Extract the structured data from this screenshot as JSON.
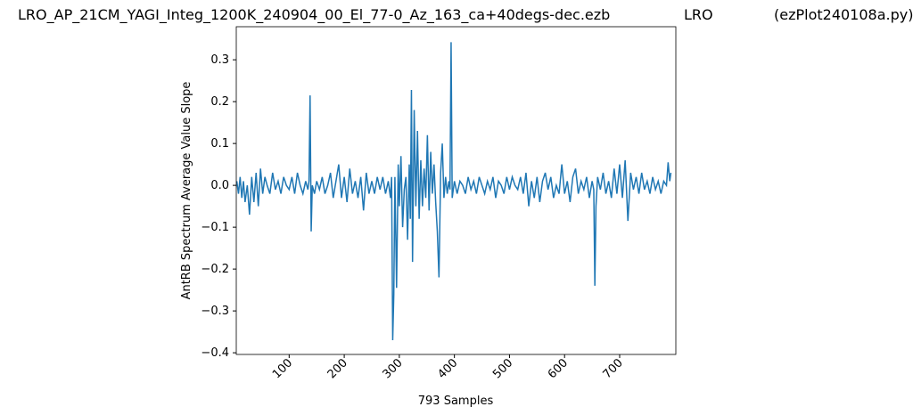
{
  "chart_data": {
    "type": "line",
    "title_parts": [
      "LRO_AP_21CM_YAGI_Integ_1200K_240904_00_El_77-0_Az_163_ca+40degs-dec.ezb",
      "LRO",
      "(ezPlot240108a.py)"
    ],
    "x_label": "793 Samples",
    "y_label": "AntRB Spectrum Average Value Slope",
    "color": "#1f77b4",
    "xlim": [
      4,
      802
    ],
    "ylim": [
      -0.404,
      0.379
    ],
    "xticks": [
      100,
      200,
      300,
      400,
      500,
      600,
      700
    ],
    "yticks": [
      {
        "value": -0.4,
        "label": "−0.4"
      },
      {
        "value": -0.3,
        "label": "−0.3"
      },
      {
        "value": -0.2,
        "label": "−0.2"
      },
      {
        "value": -0.1,
        "label": "−0.1"
      },
      {
        "value": 0,
        "label": "0.0"
      },
      0.1,
      0.2,
      0.3
    ],
    "x": [
      5,
      8,
      11,
      14,
      17,
      20,
      24,
      28,
      32,
      36,
      40,
      44,
      48,
      52,
      56,
      60,
      65,
      70,
      75,
      80,
      85,
      90,
      95,
      100,
      105,
      110,
      115,
      120,
      125,
      130,
      134,
      136,
      138,
      140,
      142,
      146,
      150,
      155,
      160,
      165,
      170,
      175,
      180,
      185,
      190,
      195,
      200,
      205,
      210,
      215,
      220,
      225,
      230,
      235,
      240,
      245,
      250,
      255,
      260,
      265,
      270,
      275,
      280,
      284,
      286,
      288,
      290,
      292,
      295,
      298,
      300,
      303,
      306,
      309,
      312,
      315,
      318,
      320,
      322,
      324,
      327,
      330,
      333,
      336,
      339,
      342,
      345,
      348,
      351,
      354,
      357,
      360,
      363,
      366,
      369,
      372,
      375,
      378,
      381,
      384,
      387,
      390,
      392,
      394,
      396,
      400,
      405,
      410,
      415,
      420,
      425,
      430,
      435,
      440,
      445,
      450,
      455,
      460,
      465,
      470,
      475,
      480,
      485,
      490,
      495,
      500,
      505,
      510,
      515,
      520,
      525,
      530,
      535,
      540,
      545,
      550,
      555,
      560,
      565,
      570,
      575,
      580,
      585,
      590,
      595,
      600,
      605,
      610,
      615,
      620,
      625,
      630,
      635,
      640,
      645,
      650,
      653,
      655,
      657,
      660,
      665,
      670,
      675,
      680,
      685,
      690,
      695,
      700,
      705,
      710,
      715,
      720,
      725,
      730,
      735,
      740,
      745,
      750,
      755,
      760,
      765,
      770,
      775,
      780,
      785,
      788,
      791,
      793
    ],
    "values": [
      0.01,
      -0.02,
      0.02,
      -0.03,
      0.01,
      -0.04,
      0.0,
      -0.07,
      0.02,
      -0.04,
      0.03,
      -0.05,
      0.04,
      -0.02,
      0.02,
      0.0,
      -0.02,
      0.03,
      -0.01,
      0.01,
      -0.02,
      0.02,
      0.0,
      -0.01,
      0.02,
      -0.02,
      0.03,
      0.0,
      -0.02,
      0.01,
      -0.01,
      0.01,
      0.215,
      -0.11,
      0.0,
      -0.02,
      0.01,
      -0.01,
      0.02,
      -0.02,
      0.0,
      0.03,
      -0.03,
      0.01,
      0.05,
      -0.03,
      0.02,
      -0.04,
      0.04,
      -0.02,
      0.01,
      -0.03,
      0.02,
      -0.06,
      0.03,
      -0.02,
      0.01,
      -0.02,
      0.02,
      -0.01,
      0.02,
      -0.02,
      0.01,
      -0.03,
      0.02,
      -0.37,
      -0.26,
      0.02,
      -0.245,
      0.05,
      -0.05,
      0.07,
      -0.1,
      -0.01,
      0.02,
      -0.13,
      0.05,
      -0.08,
      0.228,
      -0.183,
      0.18,
      -0.05,
      0.13,
      -0.08,
      0.06,
      -0.05,
      0.04,
      -0.03,
      0.12,
      -0.06,
      0.08,
      -0.02,
      0.05,
      -0.04,
      -0.11,
      -0.22,
      0.03,
      0.1,
      -0.03,
      0.02,
      -0.02,
      0.01,
      -0.01,
      0.342,
      -0.03,
      0.01,
      -0.02,
      0.01,
      0.0,
      -0.02,
      0.02,
      -0.01,
      0.01,
      -0.02,
      0.02,
      0.0,
      -0.02,
      0.01,
      -0.01,
      0.02,
      -0.03,
      0.01,
      0.0,
      -0.02,
      0.02,
      -0.01,
      0.02,
      0.0,
      -0.01,
      0.02,
      -0.02,
      0.03,
      -0.05,
      0.01,
      -0.03,
      0.02,
      -0.04,
      0.01,
      0.03,
      -0.01,
      0.02,
      -0.03,
      0.0,
      -0.02,
      0.05,
      -0.02,
      0.01,
      -0.04,
      0.02,
      0.04,
      -0.02,
      0.01,
      -0.01,
      0.02,
      -0.03,
      0.01,
      -0.01,
      -0.24,
      -0.05,
      0.02,
      -0.01,
      0.03,
      -0.02,
      0.01,
      -0.03,
      0.04,
      -0.02,
      0.05,
      -0.03,
      0.06,
      -0.085,
      0.03,
      -0.01,
      0.02,
      -0.02,
      0.03,
      -0.01,
      0.01,
      -0.02,
      0.02,
      -0.01,
      0.01,
      -0.02,
      0.01,
      0.0,
      0.055,
      0.01,
      0.03
    ]
  }
}
